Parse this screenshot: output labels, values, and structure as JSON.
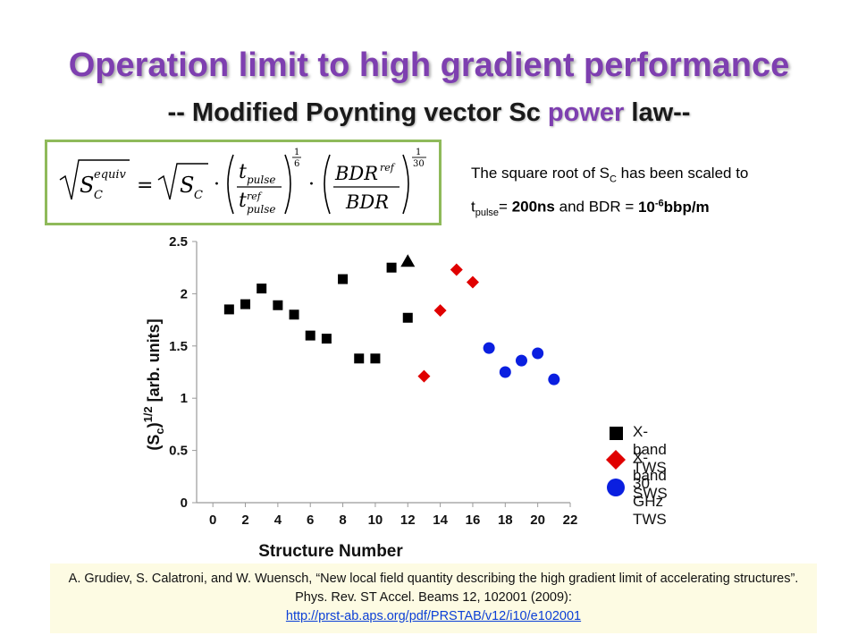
{
  "title": "Operation limit to high gradient performance",
  "subtitle": {
    "prefix": "-- Modified Poynting vector Sc",
    "highlight": "power",
    "suffix": "law--"
  },
  "formula": {
    "lhs_base": "S",
    "lhs_sup": "equiv",
    "lhs_sub": "C",
    "rhs_sc": "S",
    "rhs_sc_sub": "C",
    "t_pulse": "t",
    "pulse": "pulse",
    "ref": "ref",
    "bdr": "BDR",
    "exp1_num": "1",
    "exp1_den": "6",
    "exp2_num": "1",
    "exp2_den": "30",
    "equals": "=",
    "dot": "·"
  },
  "note": {
    "line1_prefix": "The square root of S",
    "line1_sub": "C",
    "line1_suffix": " has been scaled to",
    "t": "t",
    "t_sub": "pulse",
    "eq": "= ",
    "pulse_value": "200ns",
    "mid": " and BDR = ",
    "bdr_base": "10",
    "bdr_exp": "-6",
    "bdr_unit": "bbp/m"
  },
  "chart_data": {
    "type": "scatter",
    "xlabel": "Structure Number",
    "ylabel": "(Sc)^1/2 [arb. units]",
    "ylabel_base": "(S",
    "ylabel_sub": "c",
    "ylabel_close": ")",
    "ylabel_sup": "1/2",
    "ylabel_rest": " [arb. units]",
    "xlim": [
      -1,
      22
    ],
    "ylim": [
      0,
      2.5
    ],
    "xticks": [
      0,
      2,
      4,
      6,
      8,
      10,
      12,
      14,
      16,
      18,
      20,
      22
    ],
    "yticks": [
      0,
      0.5,
      1,
      1.5,
      2,
      2.5
    ],
    "ytick_labels": [
      "0",
      "0.5",
      "1",
      "1.5",
      "2",
      "2.5"
    ],
    "grid": false,
    "series": [
      {
        "name": "X-band TWS",
        "color": "#000000",
        "marker": "square",
        "points": [
          [
            1,
            1.85
          ],
          [
            2,
            1.9
          ],
          [
            3,
            2.05
          ],
          [
            4,
            1.89
          ],
          [
            5,
            1.8
          ],
          [
            6,
            1.6
          ],
          [
            7,
            1.57
          ],
          [
            8,
            2.14
          ],
          [
            9,
            1.38
          ],
          [
            10,
            1.38
          ],
          [
            11,
            2.25
          ],
          [
            12,
            1.77
          ]
        ]
      },
      {
        "name": "",
        "color": "#000000",
        "marker": "triangle",
        "points": [
          [
            12,
            2.31
          ]
        ]
      },
      {
        "name": "X-band SWS",
        "color": "#e00000",
        "marker": "diamond",
        "points": [
          [
            13,
            1.21
          ],
          [
            14,
            1.84
          ],
          [
            15,
            2.23
          ],
          [
            16,
            2.11
          ]
        ]
      },
      {
        "name": "30 GHz TWS",
        "color": "#0a1fe0",
        "marker": "circle",
        "points": [
          [
            17,
            1.48
          ],
          [
            18,
            1.25
          ],
          [
            19,
            1.36
          ],
          [
            20,
            1.43
          ],
          [
            21,
            1.18
          ]
        ]
      }
    ]
  },
  "legend": [
    {
      "label": "X-band TWS",
      "color": "#000000",
      "icon": "square-icon"
    },
    {
      "label": "X-band SWS",
      "color": "#e00000",
      "icon": "diamond-icon"
    },
    {
      "label": "30 GHz TWS",
      "color": "#0a1fe0",
      "icon": "circle-icon"
    }
  ],
  "reference": {
    "text": "A. Grudiev, S. Calatroni, and W. Wuensch, “New local field quantity describing the high gradient limit of accelerating structures”. Phys. Rev. ST Accel. Beams 12, 102001 (2009):",
    "link": "http://prst-ab.aps.org/pdf/PRSTAB/v12/i10/e102001"
  }
}
